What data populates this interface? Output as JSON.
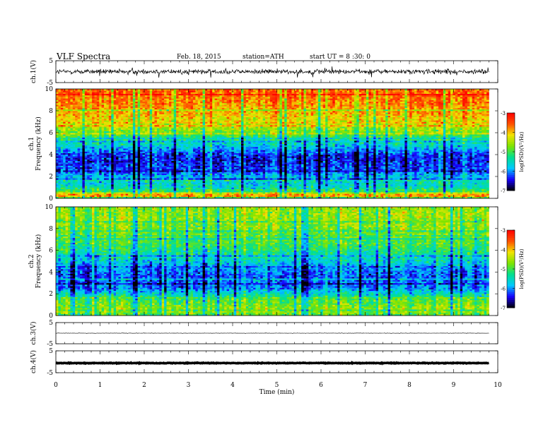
{
  "header": {
    "title": "VLF Spectra",
    "date": "Feb. 18, 2015",
    "station": "station=ATH",
    "start": "start  UT =   8 :30: 0"
  },
  "colors": {
    "scale": [
      "#000000",
      "#1800ff",
      "#00c8ff",
      "#00e090",
      "#7ee400",
      "#f2e400",
      "#ff5000",
      "#ff0000",
      "#ffffff"
    ],
    "background": "#ffffff",
    "trace": "#000000"
  },
  "chart_data": [
    {
      "type": "line",
      "name": "ch1-waveform",
      "ylabel": "ch.1(V)",
      "yticks": [
        "5",
        "-5"
      ],
      "ylim": [
        -5,
        5
      ],
      "xlim": [
        0,
        10
      ],
      "data_end_min": 9.8,
      "baseline_v": 0.0,
      "noise_amplitude_v": 1.6
    },
    {
      "type": "heatmap",
      "name": "ch1-spectrogram",
      "ylabel": "ch.1\nFrequency (kHz)",
      "yticks": [
        "0",
        "2",
        "4",
        "6",
        "8",
        "10"
      ],
      "ylim": [
        0,
        10
      ],
      "xlim": [
        0,
        10
      ],
      "data_end_min": 9.8,
      "colorbar": {
        "label": "log(PSD)(V²/Hz)",
        "ticks": [
          "-3",
          "-4",
          "-5",
          "-6",
          "-7"
        ],
        "range": [
          -7,
          -3
        ]
      },
      "mean_logpsd_profile": [
        {
          "f": 0.0,
          "v": -4.6
        },
        {
          "f": 0.3,
          "v": -3.6
        },
        {
          "f": 0.6,
          "v": -4.8
        },
        {
          "f": 1.0,
          "v": -5.5
        },
        {
          "f": 1.5,
          "v": -5.6
        },
        {
          "f": 2.0,
          "v": -5.8
        },
        {
          "f": 2.5,
          "v": -6.2
        },
        {
          "f": 3.0,
          "v": -6.3
        },
        {
          "f": 3.5,
          "v": -6.4
        },
        {
          "f": 4.0,
          "v": -6.3
        },
        {
          "f": 4.5,
          "v": -5.9
        },
        {
          "f": 5.0,
          "v": -5.5
        },
        {
          "f": 5.5,
          "v": -5.2
        },
        {
          "f": 6.0,
          "v": -4.8
        },
        {
          "f": 7.0,
          "v": -4.2
        },
        {
          "f": 8.0,
          "v": -3.9
        },
        {
          "f": 9.0,
          "v": -3.7
        },
        {
          "f": 10.0,
          "v": -3.6
        }
      ]
    },
    {
      "type": "heatmap",
      "name": "ch2-spectrogram",
      "ylabel": "ch.2\nFrequency (kHz)",
      "yticks": [
        "0",
        "2",
        "4",
        "6",
        "8",
        "10"
      ],
      "ylim": [
        0,
        10
      ],
      "xlim": [
        0,
        10
      ],
      "data_end_min": 9.8,
      "colorbar": {
        "label": "log(PSD)(V²/Hz)",
        "ticks": [
          "-3",
          "-4",
          "-5",
          "-6",
          "-7"
        ],
        "range": [
          -7,
          -3
        ]
      },
      "mean_logpsd_profile": [
        {
          "f": 0.0,
          "v": -5.0
        },
        {
          "f": 0.5,
          "v": -4.5
        },
        {
          "f": 1.0,
          "v": -4.8
        },
        {
          "f": 1.5,
          "v": -5.0
        },
        {
          "f": 2.0,
          "v": -5.5
        },
        {
          "f": 2.5,
          "v": -6.0
        },
        {
          "f": 3.0,
          "v": -6.1
        },
        {
          "f": 3.5,
          "v": -6.2
        },
        {
          "f": 4.0,
          "v": -6.1
        },
        {
          "f": 4.5,
          "v": -5.9
        },
        {
          "f": 5.0,
          "v": -5.6
        },
        {
          "f": 6.0,
          "v": -5.2
        },
        {
          "f": 7.0,
          "v": -4.9
        },
        {
          "f": 8.0,
          "v": -4.7
        },
        {
          "f": 9.0,
          "v": -4.6
        },
        {
          "f": 10.0,
          "v": -4.6
        }
      ]
    },
    {
      "type": "line",
      "name": "ch3-waveform",
      "ylabel": "ch.3(V)",
      "yticks": [
        "5",
        "-5"
      ],
      "ylim": [
        -5,
        5
      ],
      "xlim": [
        0,
        10
      ],
      "data_end_min": 9.8,
      "baseline_v": 0.0,
      "noise_amplitude_v": 0.15
    },
    {
      "type": "line",
      "name": "ch4-waveform",
      "ylabel": "ch.4(V)",
      "yticks": [
        "5",
        "-5"
      ],
      "ylim": [
        -5,
        5
      ],
      "xlim": [
        0,
        10
      ],
      "data_end_min": 9.8,
      "baseline_v": -0.6,
      "noise_amplitude_v": 0.2
    }
  ],
  "xaxis": {
    "label": "Time (min)",
    "ticks": [
      "0",
      "1",
      "2",
      "3",
      "4",
      "5",
      "6",
      "7",
      "8",
      "9",
      "10"
    ]
  }
}
